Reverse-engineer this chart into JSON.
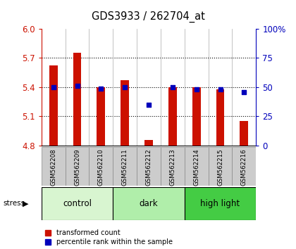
{
  "title": "GDS3933 / 262704_at",
  "samples": [
    "GSM562208",
    "GSM562209",
    "GSM562210",
    "GSM562211",
    "GSM562212",
    "GSM562213",
    "GSM562214",
    "GSM562215",
    "GSM562216"
  ],
  "red_values": [
    5.62,
    5.75,
    5.4,
    5.47,
    4.86,
    5.4,
    5.4,
    5.38,
    5.05
  ],
  "blue_values": [
    50,
    51,
    49,
    50,
    35,
    50,
    48,
    48,
    46
  ],
  "ymin": 4.8,
  "ymax": 6.0,
  "yticks_left": [
    4.8,
    5.1,
    5.4,
    5.7,
    6.0
  ],
  "yticks_right": [
    0,
    25,
    50,
    75,
    100
  ],
  "bar_bottom": 4.8,
  "bar_color": "#cc1100",
  "dot_color": "#0000bb",
  "bar_width": 0.35,
  "groups": [
    {
      "label": "control",
      "start": 0,
      "end": 3,
      "color": "#d8f5d0"
    },
    {
      "label": "dark",
      "start": 3,
      "end": 6,
      "color": "#b0eeaa"
    },
    {
      "label": "high light",
      "start": 6,
      "end": 9,
      "color": "#44cc44"
    }
  ],
  "stress_label": "stress",
  "legend_red": "transformed count",
  "legend_blue": "percentile rank within the sample",
  "left_axis_color": "#cc1100",
  "right_axis_color": "#0000bb",
  "label_bg": "#cccccc",
  "gridline_ticks": [
    5.1,
    5.4,
    5.7
  ]
}
